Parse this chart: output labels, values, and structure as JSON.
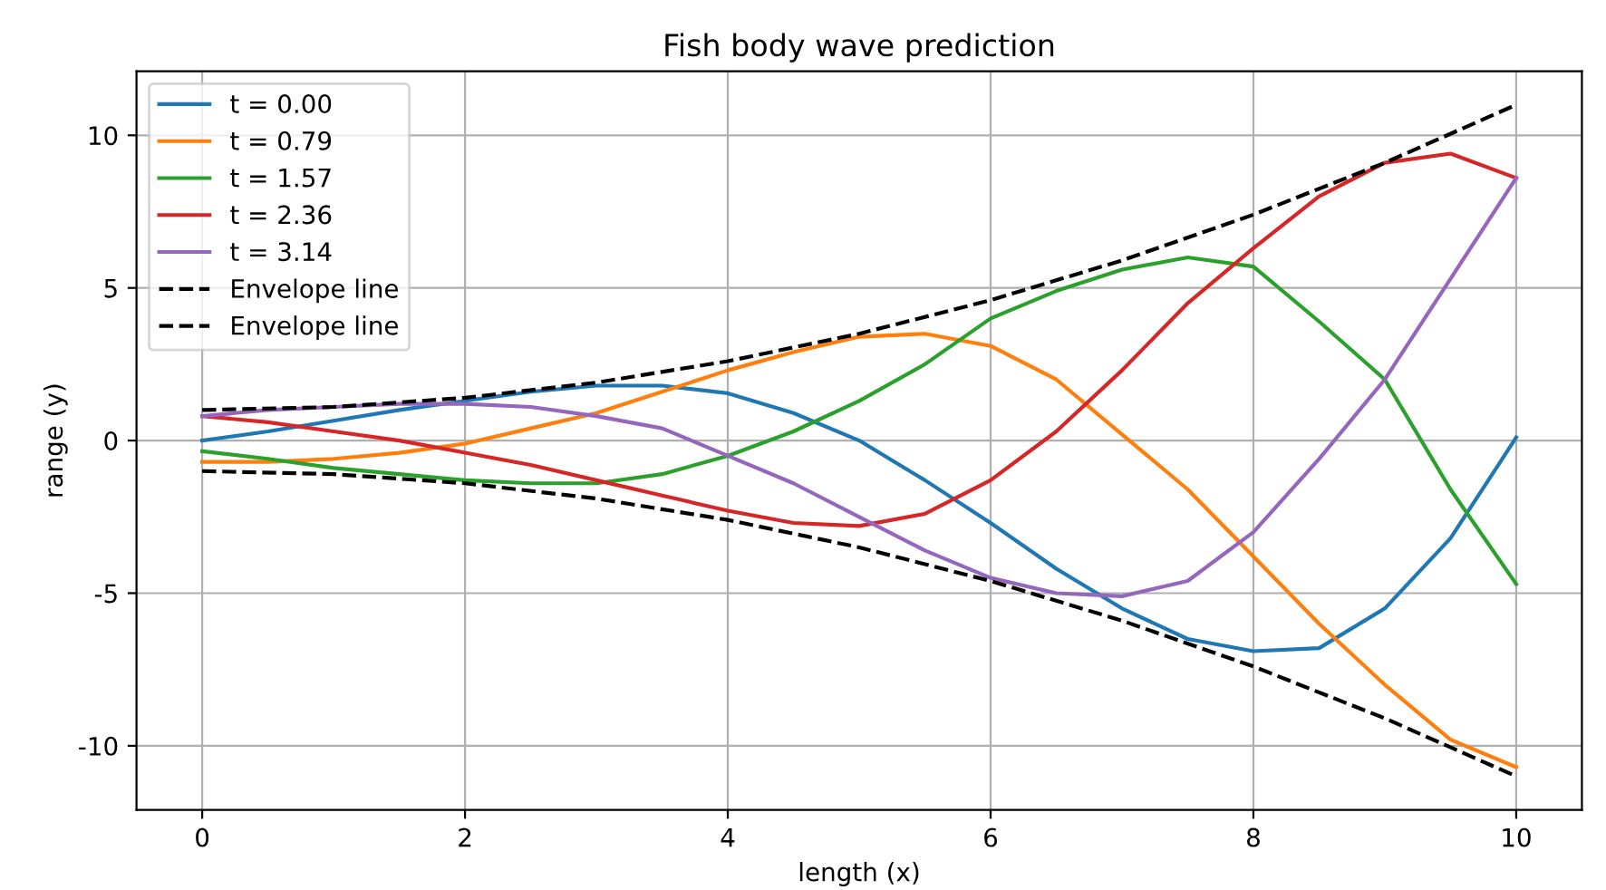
{
  "chart_data": {
    "type": "line",
    "title": "Fish body wave prediction",
    "xlabel": "length (x)",
    "ylabel": "range (y)",
    "xlim": [
      -0.5,
      10.5
    ],
    "ylim": [
      -12.1,
      12.1
    ],
    "xticks": [
      0,
      2,
      4,
      6,
      8,
      10
    ],
    "yticks": [
      -10,
      -5,
      0,
      5,
      10
    ],
    "grid": true,
    "legend": "top left",
    "series": [
      {
        "name": "t = 0.00",
        "color": "#1f77b4",
        "x": [
          0,
          0.5,
          1,
          1.5,
          2,
          2.5,
          3,
          3.5,
          4,
          4.5,
          5,
          5.5,
          6,
          6.5,
          7,
          7.5,
          8,
          8.5,
          9,
          9.5,
          10
        ],
        "values": [
          0,
          0.3,
          0.65,
          1.0,
          1.3,
          1.6,
          1.8,
          1.8,
          1.55,
          0.9,
          0.0,
          -1.3,
          -2.7,
          -4.2,
          -5.5,
          -6.5,
          -6.9,
          -6.8,
          -5.5,
          -3.2,
          0.1
        ]
      },
      {
        "name": "t = 0.79",
        "color": "#ff7f0e",
        "x": [
          0,
          0.5,
          1,
          1.5,
          2,
          2.5,
          3,
          3.5,
          4,
          4.5,
          5,
          5.5,
          6,
          6.5,
          7,
          7.5,
          8,
          8.5,
          9,
          9.5,
          10
        ],
        "values": [
          -0.7,
          -0.7,
          -0.6,
          -0.4,
          -0.1,
          0.4,
          0.9,
          1.6,
          2.3,
          2.9,
          3.4,
          3.5,
          3.1,
          2.0,
          0.2,
          -1.6,
          -3.8,
          -6.0,
          -8.0,
          -9.8,
          -10.7
        ]
      },
      {
        "name": "t = 1.57",
        "color": "#2ca02c",
        "x": [
          0,
          0.5,
          1,
          1.5,
          2,
          2.5,
          3,
          3.5,
          4,
          4.5,
          5,
          5.5,
          6,
          6.5,
          7,
          7.5,
          8,
          8.5,
          9,
          9.5,
          10
        ],
        "values": [
          -0.35,
          -0.6,
          -0.9,
          -1.1,
          -1.3,
          -1.4,
          -1.4,
          -1.1,
          -0.5,
          0.3,
          1.3,
          2.5,
          4.0,
          4.9,
          5.6,
          6.0,
          5.7,
          3.9,
          2.0,
          -1.6,
          -4.7
        ]
      },
      {
        "name": "t = 2.36",
        "color": "#d62728",
        "x": [
          0,
          0.5,
          1,
          1.5,
          2,
          2.5,
          3,
          3.5,
          4,
          4.5,
          5,
          5.5,
          6,
          6.5,
          7,
          7.5,
          8,
          8.5,
          9,
          9.5,
          10
        ],
        "values": [
          0.8,
          0.6,
          0.3,
          0.0,
          -0.4,
          -0.8,
          -1.3,
          -1.8,
          -2.3,
          -2.7,
          -2.8,
          -2.4,
          -1.3,
          0.3,
          2.3,
          4.5,
          6.3,
          8.0,
          9.1,
          9.4,
          8.6
        ]
      },
      {
        "name": "t = 3.14",
        "color": "#9467bd",
        "x": [
          0,
          0.5,
          1,
          1.5,
          2,
          2.5,
          3,
          3.5,
          4,
          4.5,
          5,
          5.5,
          6,
          6.5,
          7,
          7.5,
          8,
          8.5,
          9,
          9.5,
          10
        ],
        "values": [
          0.8,
          1.0,
          1.1,
          1.2,
          1.2,
          1.1,
          0.8,
          0.4,
          -0.5,
          -1.4,
          -2.5,
          -3.6,
          -4.5,
          -5.0,
          -5.1,
          -4.6,
          -3.0,
          -0.6,
          2.0,
          5.3,
          8.6
        ]
      },
      {
        "name": "Envelope line",
        "color": "#000000",
        "line_style": "dashed",
        "x": [
          0,
          1,
          2,
          3,
          4,
          5,
          6,
          7,
          8,
          9,
          10
        ],
        "values": [
          1,
          1.1,
          1.4,
          1.9,
          2.6,
          3.5,
          4.6,
          5.9,
          7.4,
          9.1,
          11
        ]
      },
      {
        "name": "Envelope line",
        "color": "#000000",
        "line_style": "dashed",
        "x": [
          0,
          1,
          2,
          3,
          4,
          5,
          6,
          7,
          8,
          9,
          10
        ],
        "values": [
          -1,
          -1.1,
          -1.4,
          -1.9,
          -2.6,
          -3.5,
          -4.6,
          -5.9,
          -7.4,
          -9.1,
          -11
        ]
      }
    ]
  }
}
